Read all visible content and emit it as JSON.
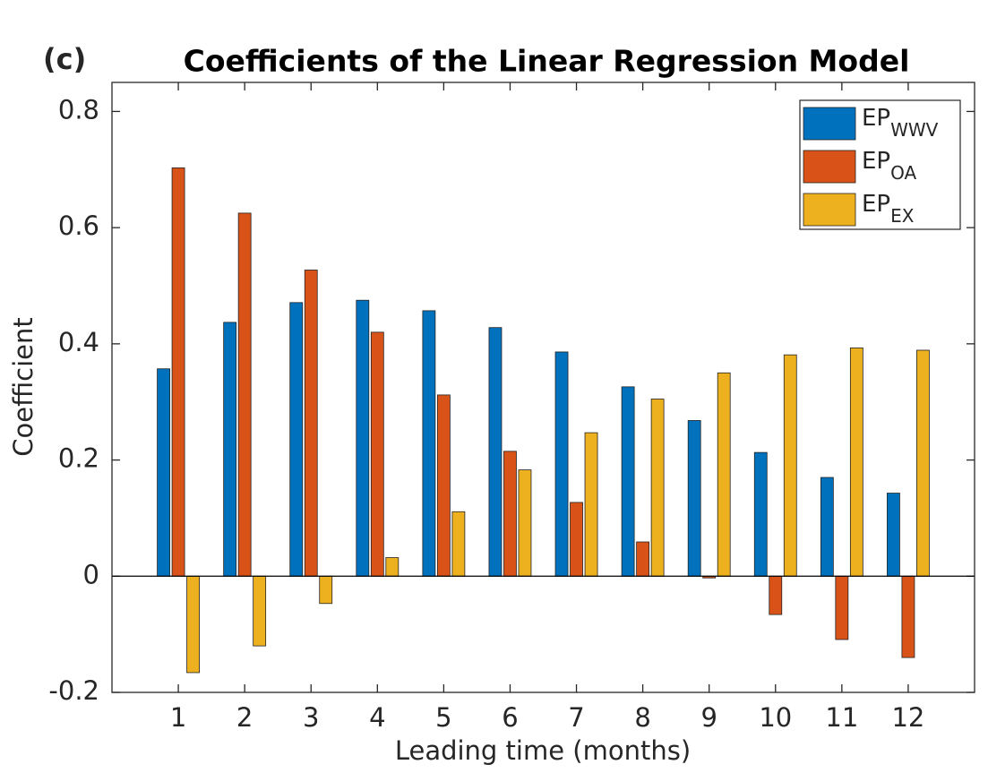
{
  "chart_data": {
    "type": "bar",
    "panel_label": "(c)",
    "title": "Coefficients of the Linear Regression Model",
    "x_label": "Leading time (months)",
    "y_label": "Coefficient",
    "categories": [
      "1",
      "2",
      "3",
      "4",
      "5",
      "6",
      "7",
      "8",
      "9",
      "10",
      "11",
      "12"
    ],
    "series": [
      {
        "name": "EP",
        "subscript": "WWV",
        "color": "#0072bd",
        "values": [
          0.357,
          0.437,
          0.471,
          0.475,
          0.457,
          0.428,
          0.386,
          0.326,
          0.268,
          0.213,
          0.17,
          0.143
        ]
      },
      {
        "name": "EP",
        "subscript": "OA",
        "color": "#d95319",
        "values": [
          0.703,
          0.625,
          0.527,
          0.42,
          0.312,
          0.215,
          0.127,
          0.059,
          -0.003,
          -0.066,
          -0.109,
          -0.14
        ]
      },
      {
        "name": "EP",
        "subscript": "EX",
        "color": "#edb120",
        "values": [
          -0.166,
          -0.12,
          -0.047,
          0.032,
          0.111,
          0.183,
          0.247,
          0.305,
          0.35,
          0.381,
          0.393,
          0.389
        ]
      }
    ],
    "ylim": [
      -0.2,
      0.85
    ],
    "yticks": [
      -0.2,
      0,
      0.2,
      0.4,
      0.6,
      0.8
    ],
    "grid": false,
    "legend": "upper right"
  }
}
